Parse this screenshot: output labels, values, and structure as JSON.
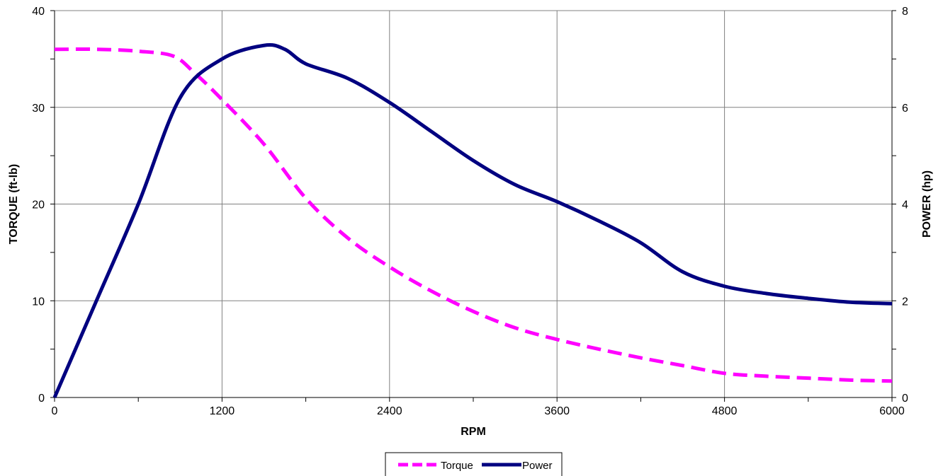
{
  "chart_data": {
    "type": "line",
    "title": "",
    "xlabel": "RPM",
    "ylabel_left": "TORQUE (ft-lb)",
    "ylabel_right": "POWER (hp)",
    "xlim": [
      0,
      6000
    ],
    "ylim_left": [
      0,
      40
    ],
    "ylim_right": [
      0,
      8
    ],
    "x_ticks": [
      0,
      1200,
      2400,
      3600,
      4800,
      6000
    ],
    "y_left_ticks": [
      0,
      10,
      20,
      30,
      40
    ],
    "y_right_ticks": [
      0,
      2,
      4,
      6,
      8
    ],
    "grid": true,
    "legend_position": "bottom-center",
    "series": [
      {
        "name": "Torque",
        "axis": "left",
        "color": "#FF00FF",
        "style": "dashed",
        "x": [
          0,
          300,
          600,
          850,
          1000,
          1200,
          1500,
          1800,
          2100,
          2400,
          2700,
          3000,
          3300,
          3600,
          3900,
          4200,
          4500,
          4800,
          5100,
          5400,
          5700,
          6000
        ],
        "y": [
          36,
          36,
          35.8,
          35.3,
          33.6,
          30.8,
          26.2,
          20.6,
          16.5,
          13.5,
          11.0,
          8.9,
          7.2,
          6.0,
          5.0,
          4.1,
          3.3,
          2.5,
          2.2,
          2.0,
          1.8,
          1.7
        ]
      },
      {
        "name": "Power",
        "axis": "right",
        "color": "#000080",
        "style": "solid",
        "x": [
          0,
          300,
          600,
          900,
          1200,
          1500,
          1650,
          1800,
          2100,
          2400,
          2700,
          3000,
          3300,
          3600,
          3900,
          4200,
          4500,
          4800,
          5100,
          5400,
          5700,
          6000
        ],
        "y": [
          0,
          2.0,
          4.0,
          6.2,
          7.0,
          7.28,
          7.2,
          6.9,
          6.6,
          6.1,
          5.5,
          4.9,
          4.4,
          4.05,
          3.65,
          3.2,
          2.6,
          2.3,
          2.15,
          2.05,
          1.97,
          1.94
        ]
      }
    ]
  }
}
